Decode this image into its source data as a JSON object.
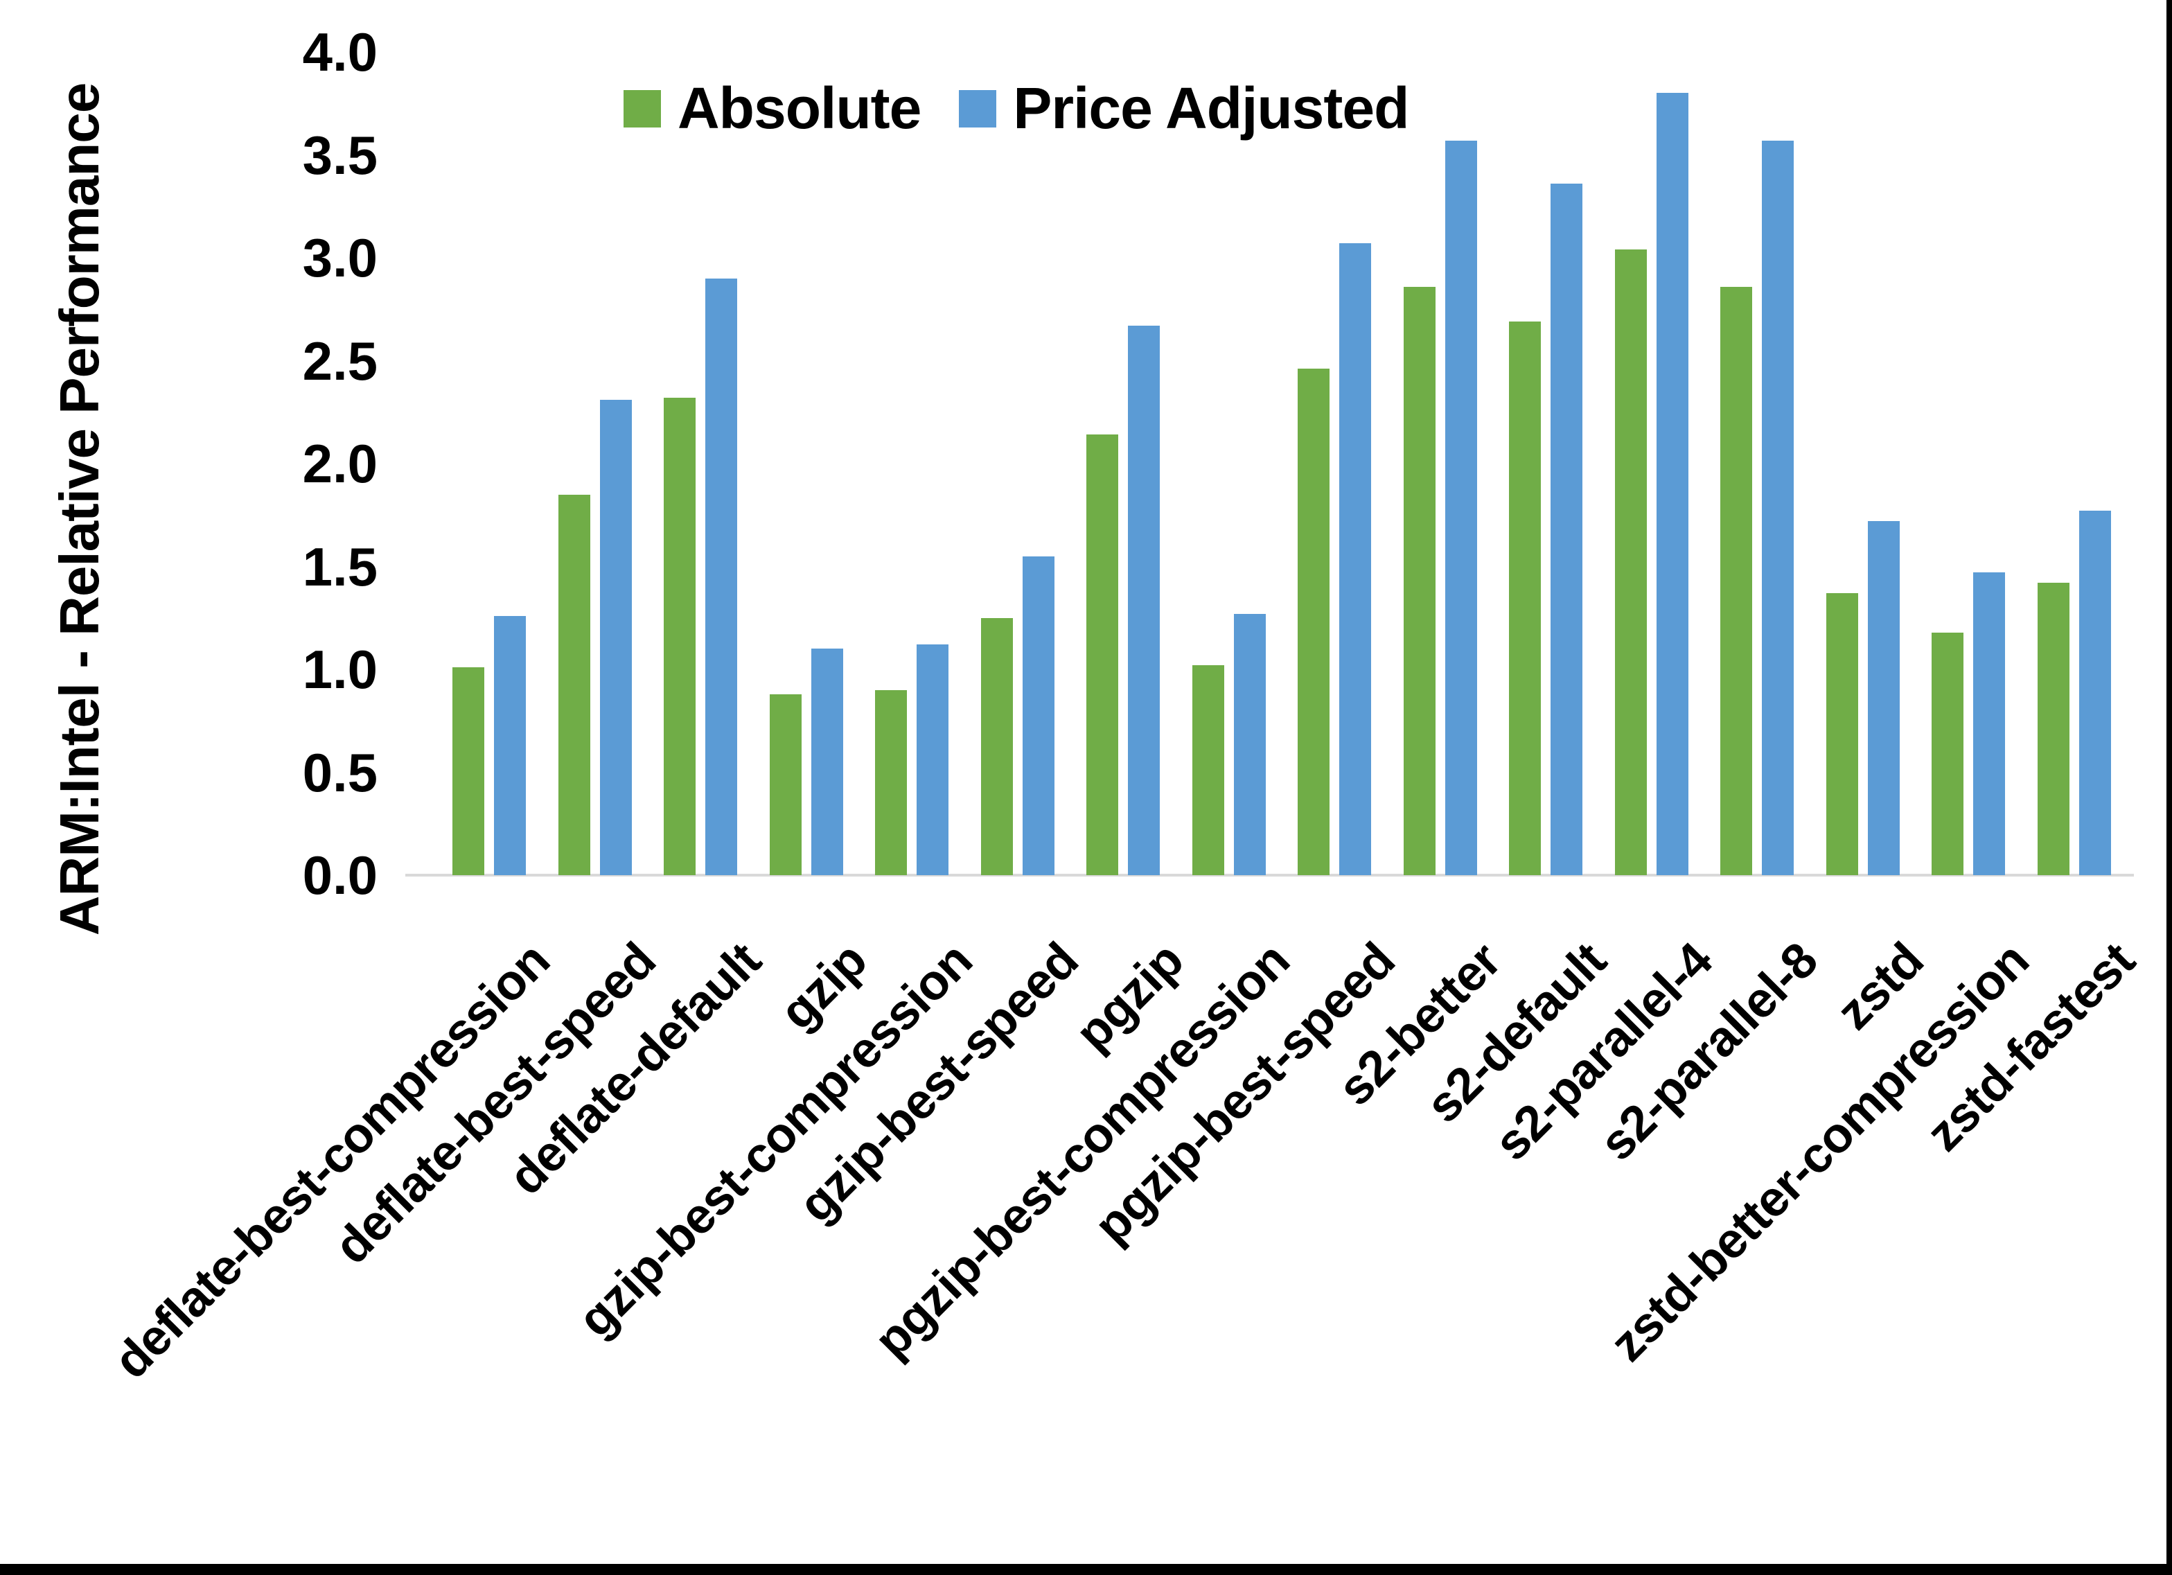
{
  "colors": {
    "background": "#FFFFFF",
    "text": "#000000",
    "axis_line": "#D9D9D9",
    "frame": "#000000",
    "series_absolute": "#70AD47",
    "series_price_adjusted": "#5B9BD5"
  },
  "chart_data": {
    "type": "bar",
    "title": "",
    "xlabel": "",
    "ylabel": "ARM:Intel - Relative Performance",
    "ylim": [
      0,
      4
    ],
    "ytick_step": 0.5,
    "yticks": [
      "0.0",
      "0.5",
      "1.0",
      "1.5",
      "2.0",
      "2.5",
      "3.0",
      "3.5",
      "4.0"
    ],
    "grid": false,
    "legend_position": "top-center",
    "categories": [
      "deflate-best-compression",
      "deflate-best-speed",
      "deflate-default",
      "gzip",
      "gzip-best-compression",
      "gzip-best-speed",
      "pgzip",
      "pgzip-best-compression",
      "pgzip-best-speed",
      "s2-better",
      "s2-default",
      "s2-parallel-4",
      "s2-parallel-8",
      "zstd",
      "zstd-better-compression",
      "zstd-fastest"
    ],
    "series": [
      {
        "name": "Absolute",
        "color": "#70AD47",
        "values": [
          1.01,
          1.85,
          2.32,
          0.88,
          0.9,
          1.25,
          2.14,
          1.02,
          2.46,
          2.86,
          2.69,
          3.04,
          2.86,
          1.37,
          1.18,
          1.42
        ]
      },
      {
        "name": "Price Adjusted",
        "color": "#5B9BD5",
        "values": [
          1.26,
          2.31,
          2.9,
          1.1,
          1.12,
          1.55,
          2.67,
          1.27,
          3.07,
          3.57,
          3.36,
          3.8,
          3.57,
          1.72,
          1.47,
          1.77
        ]
      }
    ]
  }
}
